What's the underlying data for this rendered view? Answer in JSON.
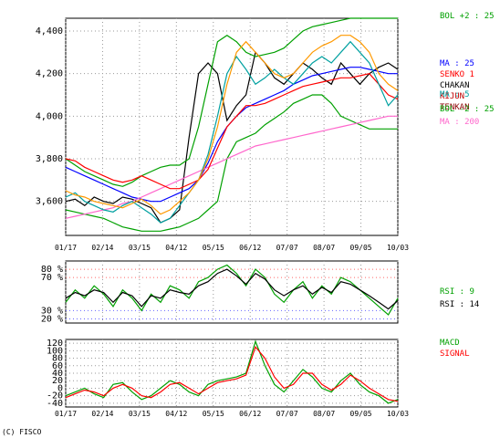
{
  "copyright": "(C) FISCO",
  "chart_data": {
    "type": "line",
    "x_labels": [
      "01/17",
      "02/14",
      "03/15",
      "04/12",
      "05/15",
      "06/12",
      "07/07",
      "08/07",
      "09/05",
      "10/03"
    ],
    "panels": [
      {
        "id": "price",
        "ylim": [
          3440,
          4460
        ],
        "y_ticks": [
          3600,
          3800,
          4000,
          4200,
          4400
        ],
        "y_tick_labels": [
          "3,600",
          "3,800",
          "4,000",
          "4,200",
          "4,400"
        ],
        "grid": true,
        "legend": [
          {
            "label": "BOL +2 : 25",
            "color": "#00a000"
          },
          {
            "label": "MA : 25",
            "color": "#0000ff"
          },
          {
            "label": "SENKO 1",
            "color": "#ff0000"
          },
          {
            "label": "CHAKAN",
            "color": "#000000"
          },
          {
            "label": "KIJUN",
            "color": "#c00000"
          },
          {
            "label": "TENKAN",
            "color": "#8b0000"
          },
          {
            "label": "MA : 5",
            "color": "#00a0a0"
          },
          {
            "label": "BOL -2 : 25",
            "color": "#00a000"
          },
          {
            "label": "MA : 200",
            "color": "#ff66cc"
          }
        ],
        "series": [
          {
            "name": "CHAKAN",
            "color": "#000000",
            "values": [
              3600,
              3610,
              3580,
              3620,
              3600,
              3590,
              3620,
              3610,
              3590,
              3570,
              3500,
              3520,
              3560,
              3900,
              4200,
              4250,
              4200,
              3980,
              4050,
              4100,
              4300,
              4250,
              4180,
              4150,
              4200,
              4250,
              4220,
              4180,
              4150,
              4250,
              4200,
              4150,
              4200,
              4230,
              4250,
              4220
            ]
          },
          {
            "name": "BOL +2",
            "color": "#00a000",
            "values": [
              3800,
              3770,
              3740,
              3720,
              3700,
              3680,
              3670,
              3690,
              3720,
              3740,
              3760,
              3770,
              3770,
              3800,
              3950,
              4150,
              4350,
              4380,
              4350,
              4300,
              4280,
              4290,
              4300,
              4320,
              4360,
              4400,
              4420,
              4430,
              4440,
              4450,
              4460,
              4460,
              4460,
              4460,
              4460,
              4460
            ]
          },
          {
            "name": "BOL -2",
            "color": "#00a000",
            "values": [
              3560,
              3550,
              3540,
              3530,
              3520,
              3500,
              3480,
              3470,
              3460,
              3460,
              3460,
              3470,
              3480,
              3500,
              3520,
              3560,
              3600,
              3800,
              3880,
              3900,
              3920,
              3960,
              3990,
              4020,
              4060,
              4080,
              4100,
              4100,
              4060,
              4000,
              3980,
              3960,
              3940,
              3940,
              3940,
              3940
            ]
          },
          {
            "name": "MA : 25",
            "color": "#0000ff",
            "values": [
              3760,
              3740,
              3720,
              3700,
              3680,
              3660,
              3640,
              3620,
              3610,
              3600,
              3600,
              3620,
              3640,
              3660,
              3700,
              3780,
              3880,
              3950,
              4000,
              4040,
              4060,
              4080,
              4100,
              4120,
              4150,
              4170,
              4190,
              4200,
              4210,
              4220,
              4230,
              4230,
              4220,
              4210,
              4200,
              4200
            ]
          },
          {
            "name": "MA : 200",
            "color": "#ff66cc",
            "values": [
              3520,
              3530,
              3540,
              3550,
              3560,
              3570,
              3590,
              3600,
              3620,
              3640,
              3660,
              3680,
              3700,
              3720,
              3740,
              3760,
              3780,
              3800,
              3820,
              3840,
              3860,
              3870,
              3880,
              3890,
              3900,
              3910,
              3920,
              3930,
              3940,
              3950,
              3960,
              3970,
              3980,
              3990,
              4000,
              4000
            ]
          },
          {
            "name": "SENKO 1",
            "color": "#ff0000",
            "values": [
              3800,
              3790,
              3760,
              3740,
              3720,
              3700,
              3690,
              3700,
              3720,
              3700,
              3680,
              3660,
              3660,
              3680,
              3700,
              3750,
              3850,
              3950,
              4000,
              4050,
              4050,
              4060,
              4080,
              4100,
              4120,
              4140,
              4150,
              4160,
              4170,
              4180,
              4180,
              4190,
              4200,
              4150,
              4100,
              4080
            ]
          },
          {
            "name": "MA : 5",
            "color": "#00a0a0",
            "values": [
              3620,
              3640,
              3600,
              3580,
              3560,
              3550,
              3580,
              3600,
              3570,
              3540,
              3500,
              3520,
              3580,
              3640,
              3700,
              3820,
              4000,
              4200,
              4280,
              4220,
              4150,
              4180,
              4220,
              4180,
              4150,
              4200,
              4250,
              4280,
              4250,
              4300,
              4350,
              4300,
              4250,
              4150,
              4050,
              4100
            ]
          },
          {
            "name": "TENKAN",
            "color": "#ff9900",
            "values": [
              3650,
              3630,
              3620,
              3600,
              3590,
              3580,
              3570,
              3590,
              3610,
              3580,
              3540,
              3560,
              3600,
              3640,
              3700,
              3800,
              3950,
              4150,
              4300,
              4350,
              4300,
              4250,
              4200,
              4180,
              4200,
              4250,
              4300,
              4330,
              4350,
              4380,
              4380,
              4350,
              4300,
              4200,
              4150,
              4120
            ]
          }
        ]
      },
      {
        "id": "rsi",
        "ylim": [
          15,
          90
        ],
        "y_ticks": [
          20,
          30,
          70,
          80
        ],
        "y_tick_labels": [
          "20 %",
          "30 %",
          "70 %",
          "80 %"
        ],
        "y_tick_colors": [
          "#6666ff",
          "#6666ff",
          "#ff6666",
          "#ff6666"
        ],
        "grid": true,
        "legend": [
          {
            "label": "RSI : 9",
            "color": "#00a000"
          },
          {
            "label": "RSI : 14",
            "color": "#000000"
          }
        ],
        "series": [
          {
            "name": "RSI : 9",
            "color": "#00a000",
            "values": [
              40,
              55,
              45,
              60,
              50,
              35,
              55,
              45,
              30,
              50,
              40,
              60,
              55,
              45,
              65,
              70,
              80,
              85,
              75,
              60,
              80,
              70,
              50,
              40,
              55,
              65,
              45,
              60,
              50,
              70,
              65,
              55,
              45,
              35,
              25,
              45
            ]
          },
          {
            "name": "RSI : 14",
            "color": "#000000",
            "values": [
              45,
              52,
              48,
              55,
              52,
              40,
              52,
              48,
              35,
              48,
              45,
              55,
              52,
              50,
              60,
              65,
              75,
              80,
              72,
              62,
              75,
              68,
              55,
              48,
              55,
              60,
              50,
              58,
              52,
              65,
              62,
              55,
              48,
              40,
              32,
              42
            ]
          }
        ]
      },
      {
        "id": "macd",
        "ylim": [
          -50,
          130
        ],
        "y_ticks": [
          -40,
          -20,
          0,
          20,
          40,
          60,
          80,
          100,
          120
        ],
        "y_tick_labels": [
          "-40",
          "-20",
          "0",
          "20",
          "40",
          "60",
          "80",
          "100",
          "120"
        ],
        "grid": true,
        "legend": [
          {
            "label": "MACD",
            "color": "#00a000"
          },
          {
            "label": "SIGNAL",
            "color": "#ff0000"
          }
        ],
        "series": [
          {
            "name": "MACD",
            "color": "#00a000",
            "values": [
              -20,
              -10,
              0,
              -15,
              -25,
              10,
              15,
              -10,
              -30,
              -20,
              0,
              20,
              10,
              -10,
              -20,
              10,
              20,
              25,
              30,
              40,
              125,
              60,
              10,
              -10,
              20,
              50,
              30,
              0,
              -10,
              20,
              40,
              10,
              -10,
              -20,
              -40,
              -30
            ]
          },
          {
            "name": "SIGNAL",
            "color": "#ff0000",
            "values": [
              -25,
              -15,
              -5,
              -10,
              -20,
              0,
              10,
              0,
              -20,
              -25,
              -10,
              10,
              15,
              0,
              -15,
              0,
              15,
              20,
              25,
              35,
              110,
              80,
              30,
              0,
              10,
              40,
              40,
              10,
              -5,
              10,
              35,
              20,
              0,
              -15,
              -30,
              -35
            ]
          }
        ]
      }
    ]
  }
}
